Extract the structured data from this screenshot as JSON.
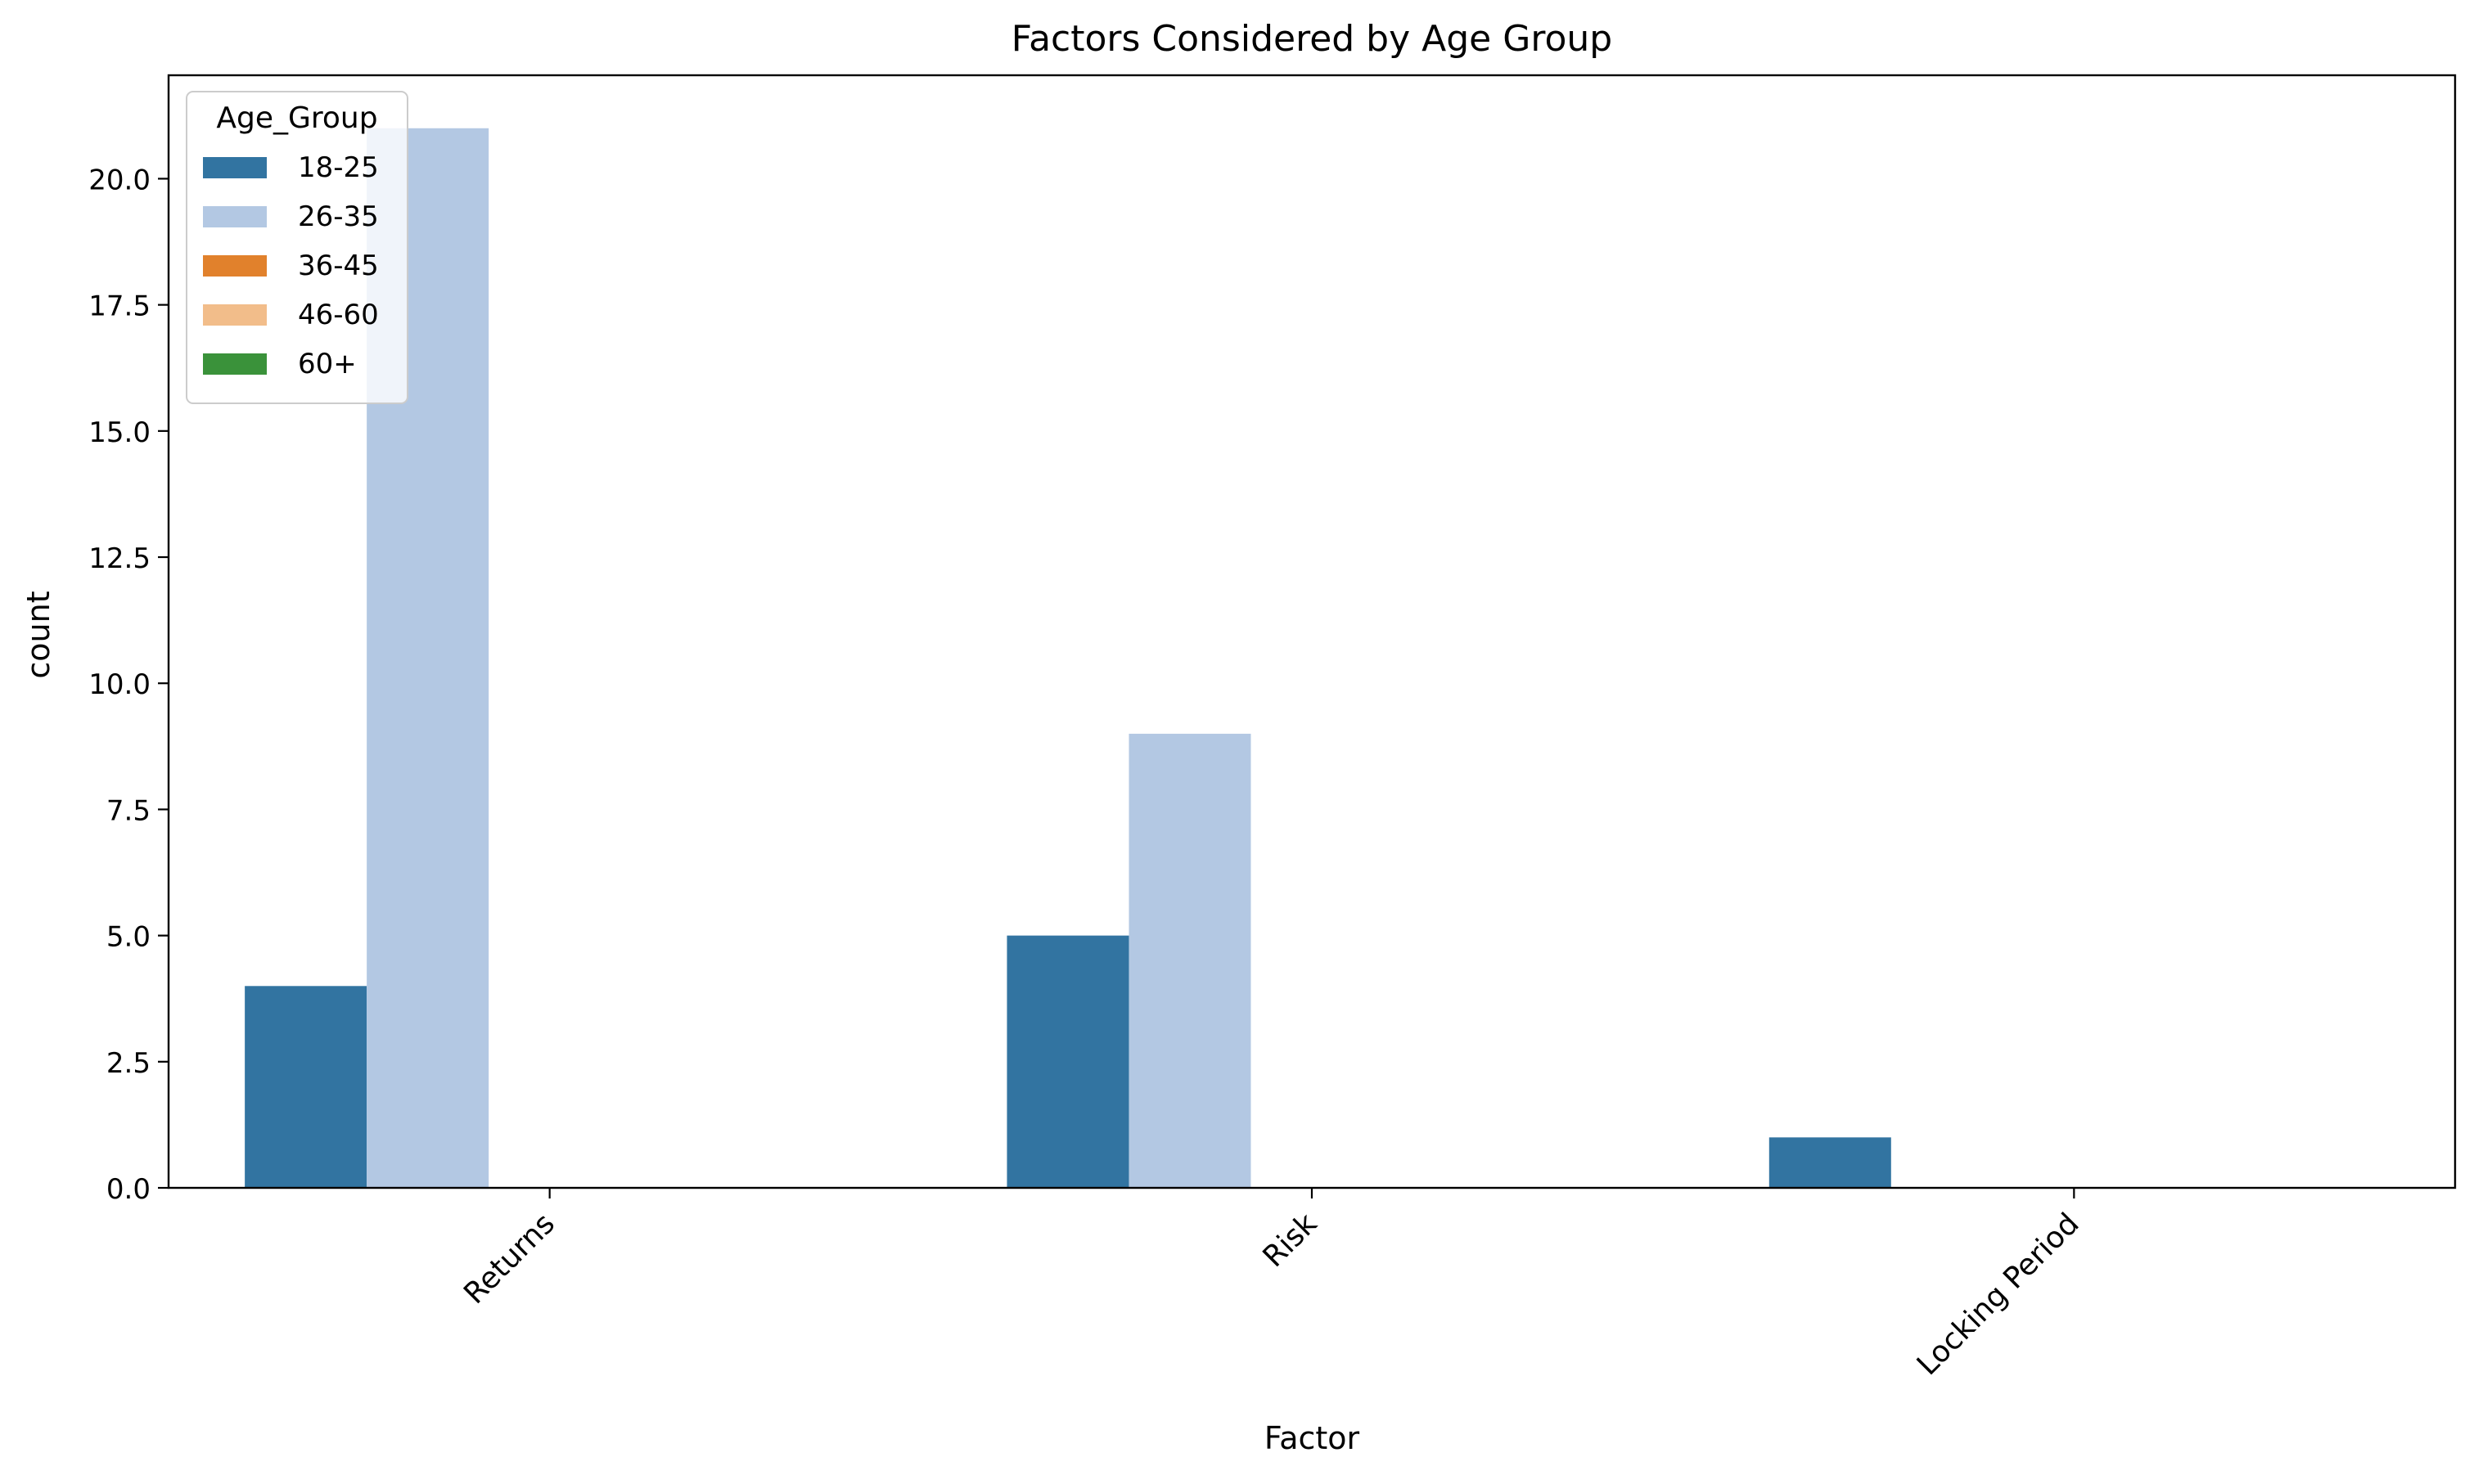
{
  "chart_data": {
    "type": "bar",
    "title": "Factors Considered by Age Group",
    "xlabel": "Factor",
    "ylabel": "count",
    "categories": [
      "Returns",
      "Risk",
      "Locking Period"
    ],
    "series": [
      {
        "name": "18-25",
        "color": "#3274a1",
        "values": [
          4,
          5,
          1
        ]
      },
      {
        "name": "26-35",
        "color": "#b3c8e3",
        "values": [
          21,
          9,
          0
        ]
      },
      {
        "name": "36-45",
        "color": "#e1812c",
        "values": [
          0,
          0,
          0
        ]
      },
      {
        "name": "46-60",
        "color": "#f2bd8a",
        "values": [
          0,
          0,
          0
        ]
      },
      {
        "name": "60+",
        "color": "#3a923a",
        "values": [
          0,
          0,
          0
        ]
      }
    ],
    "ylim": [
      0,
      22.05
    ],
    "yticks": [
      0.0,
      2.5,
      5.0,
      7.5,
      10.0,
      12.5,
      15.0,
      17.5,
      20.0
    ],
    "ytick_labels": [
      "0.0",
      "2.5",
      "5.0",
      "7.5",
      "10.0",
      "12.5",
      "15.0",
      "17.5",
      "20.0"
    ],
    "grid": false,
    "legend": {
      "title": "Age_Group",
      "placement": "top-left"
    }
  }
}
